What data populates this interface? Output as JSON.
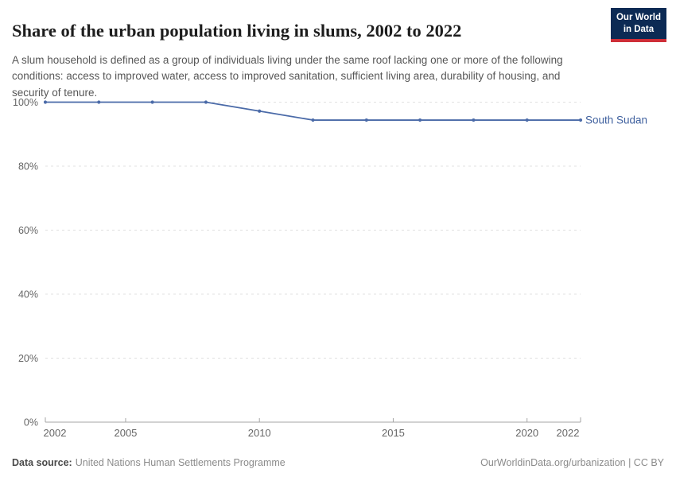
{
  "header": {
    "title": "Share of the urban population living in slums, 2002 to 2022",
    "subtitle": "A slum household is defined as a group of individuals living under the same roof lacking one or more of the following conditions: access to improved water, access to improved sanitation, sufficient living area, durability of housing, and security of tenure.",
    "logo": {
      "line1": "Our World",
      "line2": "in Data"
    }
  },
  "chart_data": {
    "type": "line",
    "title": "Share of the urban population living in slums, 2002 to 2022",
    "series": [
      {
        "name": "South Sudan",
        "x": [
          2002,
          2004,
          2006,
          2008,
          2010,
          2012,
          2014,
          2016,
          2018,
          2020,
          2022
        ],
        "values": [
          100,
          100,
          100,
          100,
          97.2,
          94.4,
          94.4,
          94.4,
          94.4,
          94.4,
          94.4
        ]
      }
    ],
    "x_ticks": [
      2002,
      2005,
      2010,
      2015,
      2020,
      2022
    ],
    "y_ticks": [
      0,
      20,
      40,
      60,
      80,
      100
    ],
    "y_tick_suffix": "%",
    "xlim": [
      2002,
      2022
    ],
    "ylim": [
      0,
      100
    ],
    "grid": "horizontal-dashed",
    "legend_position": "end-of-line-label",
    "line_color": "#4a6aa8",
    "marker_color": "#4a6aa8",
    "entity_label_color": "#40619f",
    "gridline_color": "#e0e0e0",
    "axis_color": "#a6a6a6",
    "tick_label_color": "#666666"
  },
  "footer": {
    "source_label": "Data source:",
    "source_value": "United Nations Human Settlements Programme",
    "credit": "OurWorldinData.org/urbanization | CC BY"
  }
}
